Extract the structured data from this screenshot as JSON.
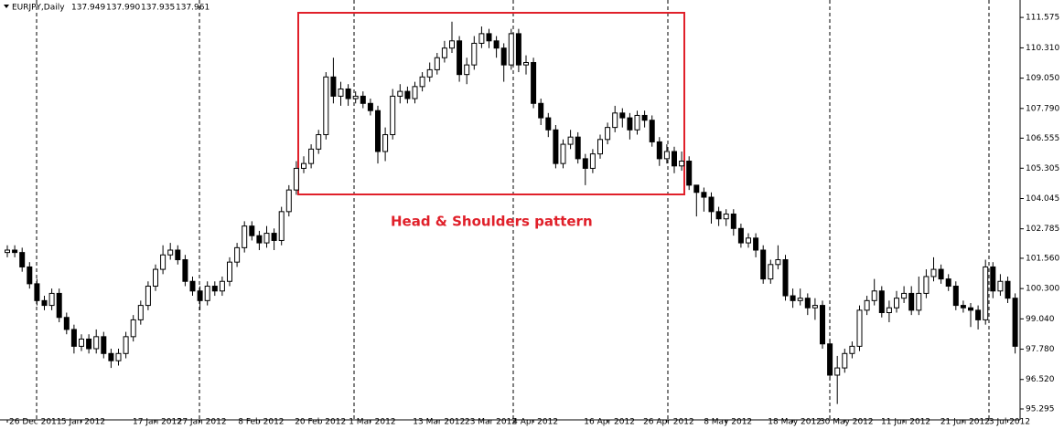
{
  "chart_data": {
    "type": "candlestick",
    "title": "EURJPY,Daily",
    "quote": {
      "values": [
        137.949,
        137.99,
        137.935,
        137.961
      ],
      "value_labels": [
        "137.949",
        "137.990",
        "137.935",
        "137.961"
      ]
    },
    "annotation": "Head & Shoulders pattern",
    "up_color": "#ffffff",
    "down_color": "#000000",
    "categories": [
      "26 Dec 2011",
      null,
      null,
      null,
      null,
      null,
      null,
      null,
      null,
      null,
      "5 Jan 2012",
      null,
      null,
      null,
      null,
      null,
      null,
      null,
      null,
      null,
      "17 Jan 2012",
      null,
      null,
      null,
      null,
      null,
      "27 Jan 2012",
      null,
      null,
      null,
      null,
      null,
      null,
      null,
      "8 Feb 2012",
      null,
      null,
      null,
      null,
      null,
      null,
      null,
      "20 Feb 2012",
      null,
      null,
      null,
      null,
      null,
      null,
      "1 Mar 2012",
      null,
      null,
      null,
      null,
      null,
      null,
      null,
      null,
      "13 Mar 2012",
      null,
      null,
      null,
      null,
      null,
      null,
      "23 Mar 2012",
      null,
      null,
      null,
      null,
      null,
      "4 Apr 2012",
      null,
      null,
      null,
      null,
      null,
      null,
      null,
      null,
      null,
      "16 Apr 2012",
      null,
      null,
      null,
      null,
      null,
      null,
      null,
      "26 Apr 2012",
      null,
      null,
      null,
      null,
      null,
      null,
      null,
      "8 May 2012",
      null,
      null,
      null,
      null,
      null,
      null,
      null,
      null,
      "18 May 2012",
      null,
      null,
      null,
      null,
      null,
      null,
      "30 May 2012",
      null,
      null,
      null,
      null,
      null,
      null,
      null,
      "11 Jun 2012",
      null,
      null,
      null,
      null,
      null,
      null,
      null,
      "21 Jun 2012",
      null,
      null,
      null,
      null,
      null,
      "3 Jul 2012",
      null
    ],
    "open": [
      101.8,
      101.9,
      101.8,
      101.2,
      100.5,
      99.8,
      99.6,
      100.1,
      99.1,
      98.6,
      97.9,
      98.2,
      97.8,
      98.3,
      97.6,
      97.3,
      97.6,
      98.3,
      99.0,
      99.6,
      100.4,
      101.1,
      101.7,
      101.9,
      101.5,
      100.6,
      100.2,
      99.8,
      100.4,
      100.2,
      100.6,
      101.4,
      102.0,
      102.9,
      102.5,
      102.2,
      102.6,
      102.3,
      103.5,
      104.4,
      105.3,
      105.5,
      106.1,
      106.7,
      109.1,
      108.3,
      108.6,
      108.2,
      108.3,
      108.0,
      107.7,
      106.0,
      106.7,
      108.3,
      108.5,
      108.2,
      108.7,
      109.1,
      109.4,
      109.9,
      110.3,
      110.6,
      109.2,
      109.6,
      110.5,
      110.9,
      110.6,
      110.3,
      109.6,
      110.9,
      109.6,
      109.7,
      108.0,
      107.4,
      106.9,
      105.5,
      106.3,
      106.6,
      105.7,
      105.3,
      105.9,
      106.5,
      107.0,
      107.6,
      107.4,
      106.9,
      107.5,
      107.3,
      106.4,
      105.7,
      106.0,
      105.4,
      105.6,
      104.6,
      104.3,
      104.1,
      103.5,
      103.2,
      103.4,
      102.8,
      102.2,
      102.4,
      101.9,
      100.7,
      101.3,
      101.5,
      100.0,
      99.8,
      99.9,
      99.5,
      99.6,
      98.0,
      96.7,
      97.0,
      97.6,
      97.9,
      99.4,
      99.8,
      100.2,
      99.3,
      99.5,
      99.9,
      100.1,
      99.4,
      100.1,
      100.8,
      101.1,
      100.7,
      100.4,
      99.6,
      99.5,
      99.4,
      99.0,
      101.2,
      100.2,
      100.6,
      99.9
    ],
    "high": [
      102.1,
      102.1,
      102.0,
      101.4,
      100.7,
      100.0,
      100.3,
      100.3,
      99.3,
      98.8,
      98.4,
      98.4,
      98.6,
      98.5,
      97.8,
      97.8,
      98.5,
      99.2,
      99.8,
      100.6,
      101.3,
      102.1,
      102.2,
      102.1,
      101.7,
      100.8,
      100.4,
      100.6,
      100.6,
      100.8,
      101.6,
      102.2,
      103.1,
      103.1,
      102.7,
      102.9,
      102.8,
      103.7,
      104.6,
      105.6,
      105.8,
      106.3,
      106.9,
      109.3,
      109.9,
      108.9,
      108.8,
      108.5,
      108.5,
      108.2,
      107.9,
      107.0,
      108.6,
      108.8,
      108.7,
      108.9,
      109.3,
      109.7,
      110.1,
      110.6,
      111.4,
      110.8,
      109.9,
      110.8,
      111.2,
      111.1,
      110.8,
      110.5,
      111.1,
      111.1,
      110.0,
      109.9,
      108.2,
      107.6,
      107.1,
      106.5,
      106.9,
      106.8,
      105.9,
      106.1,
      106.7,
      107.2,
      107.9,
      107.8,
      107.6,
      107.7,
      107.7,
      107.5,
      106.6,
      106.3,
      106.2,
      106.0,
      105.8,
      104.6,
      104.5,
      104.3,
      103.7,
      103.6,
      103.6,
      103.0,
      102.6,
      102.6,
      102.1,
      101.5,
      102.1,
      101.7,
      100.3,
      100.3,
      100.1,
      99.9,
      99.8,
      98.2,
      97.5,
      97.8,
      98.1,
      99.6,
      100.0,
      100.7,
      100.4,
      99.8,
      100.2,
      100.4,
      100.4,
      100.8,
      101.1,
      101.6,
      101.3,
      100.9,
      100.6,
      99.8,
      99.7,
      99.6,
      101.5,
      101.4,
      100.9,
      100.8,
      100.1
    ],
    "low": [
      101.6,
      101.6,
      101.0,
      100.3,
      99.6,
      99.4,
      99.4,
      98.9,
      98.4,
      97.6,
      97.7,
      97.6,
      97.6,
      97.4,
      97.0,
      97.1,
      97.4,
      98.1,
      98.8,
      99.4,
      100.2,
      100.9,
      101.5,
      101.3,
      100.4,
      100.0,
      99.4,
      99.6,
      100.0,
      100.0,
      100.4,
      101.2,
      101.8,
      102.3,
      101.9,
      102.0,
      101.9,
      102.1,
      103.3,
      104.2,
      105.1,
      105.3,
      105.9,
      106.5,
      108.0,
      107.9,
      107.9,
      108.0,
      107.8,
      107.5,
      105.5,
      105.6,
      106.5,
      108.0,
      108.0,
      108.0,
      108.5,
      108.9,
      109.2,
      109.7,
      110.1,
      108.9,
      108.8,
      109.4,
      110.3,
      110.3,
      109.9,
      108.9,
      109.4,
      109.3,
      109.2,
      107.8,
      107.1,
      106.6,
      105.3,
      105.3,
      106.1,
      105.5,
      104.6,
      105.1,
      105.7,
      106.3,
      106.8,
      107.0,
      106.5,
      106.7,
      107.0,
      106.2,
      105.4,
      105.5,
      105.1,
      105.2,
      104.4,
      103.3,
      103.5,
      103.0,
      102.9,
      102.9,
      102.5,
      102.0,
      102.0,
      101.6,
      100.5,
      100.5,
      101.1,
      99.8,
      99.5,
      99.6,
      99.2,
      99.0,
      97.8,
      96.5,
      95.5,
      96.8,
      97.4,
      97.7,
      99.2,
      99.6,
      99.1,
      98.9,
      99.3,
      99.7,
      99.2,
      99.2,
      99.9,
      100.6,
      100.5,
      100.2,
      99.4,
      99.3,
      98.7,
      98.6,
      98.8,
      99.9,
      100.0,
      99.7,
      97.6
    ],
    "close": [
      101.9,
      101.8,
      101.2,
      100.5,
      99.8,
      99.6,
      100.1,
      99.1,
      98.6,
      97.9,
      98.2,
      97.8,
      98.3,
      97.6,
      97.3,
      97.6,
      98.3,
      99.0,
      99.6,
      100.4,
      101.1,
      101.7,
      101.9,
      101.5,
      100.6,
      100.2,
      99.8,
      100.4,
      100.2,
      100.6,
      101.4,
      102.0,
      102.9,
      102.5,
      102.2,
      102.6,
      102.3,
      103.5,
      104.4,
      105.3,
      105.5,
      106.1,
      106.7,
      109.1,
      108.3,
      108.6,
      108.2,
      108.3,
      108.0,
      107.7,
      106.0,
      106.7,
      108.3,
      108.5,
      108.2,
      108.7,
      109.1,
      109.4,
      109.9,
      110.3,
      110.6,
      109.2,
      109.6,
      110.5,
      110.9,
      110.6,
      110.3,
      109.6,
      110.9,
      109.6,
      109.7,
      108.0,
      107.4,
      106.9,
      105.5,
      106.3,
      106.6,
      105.7,
      105.3,
      105.9,
      106.5,
      107.0,
      107.6,
      107.4,
      106.9,
      107.5,
      107.3,
      106.4,
      105.7,
      106.0,
      105.4,
      105.6,
      104.6,
      104.3,
      104.1,
      103.5,
      103.2,
      103.4,
      102.8,
      102.2,
      102.4,
      101.9,
      100.7,
      101.3,
      101.5,
      100.0,
      99.8,
      99.9,
      99.5,
      99.6,
      98.0,
      96.7,
      97.0,
      97.6,
      97.9,
      99.4,
      99.8,
      100.2,
      99.3,
      99.5,
      99.9,
      100.1,
      99.4,
      100.1,
      100.8,
      101.1,
      100.7,
      100.4,
      99.6,
      99.5,
      99.4,
      99.0,
      101.2,
      100.2,
      100.6,
      99.9,
      97.9
    ],
    "ylim": [
      94.84,
      112.3
    ],
    "yticks": [
      111.575,
      {
        "value": 110.31,
        "label": "110.310"
      },
      {
        "value": 109.05,
        "label": "109.050"
      },
      {
        "value": 107.79,
        "label": "107.790"
      },
      106.555,
      105.305,
      104.045,
      102.785,
      {
        "value": 101.56,
        "label": "101.560"
      },
      {
        "value": 100.3,
        "label": "100.300"
      },
      {
        "value": 99.04,
        "label": "99.040"
      },
      {
        "value": 97.78,
        "label": "97.780"
      },
      {
        "value": 96.52,
        "label": "96.520"
      },
      95.295
    ]
  }
}
